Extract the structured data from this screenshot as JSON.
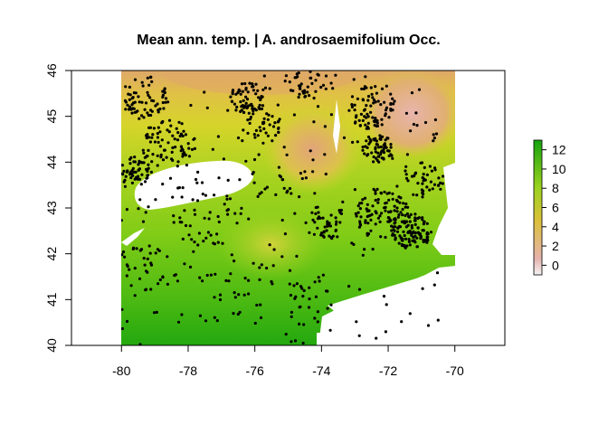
{
  "title": "Mean ann. temp. | A. androsaemifolium Occ.",
  "map": {
    "x_ticks": [
      -80,
      -78,
      -76,
      -74,
      -72,
      -70
    ],
    "y_ticks": [
      40,
      41,
      42,
      43,
      44,
      45,
      46
    ],
    "x_range": [
      -81.5,
      -68.5
    ],
    "y_range": [
      40,
      46
    ],
    "raster_extent": {
      "lon": [
        -80,
        -70
      ],
      "lat": [
        40,
        46
      ]
    },
    "legend": {
      "ticks": [
        0,
        2,
        4,
        6,
        8,
        10,
        12
      ],
      "range": [
        -1,
        13
      ],
      "placement": "right",
      "colors": [
        "#f2f2f2",
        "#e6b3ad",
        "#dcc03c",
        "#9ad21e",
        "#16a30f"
      ]
    },
    "water_color": "#ffffff",
    "point_color": "#000000"
  }
}
